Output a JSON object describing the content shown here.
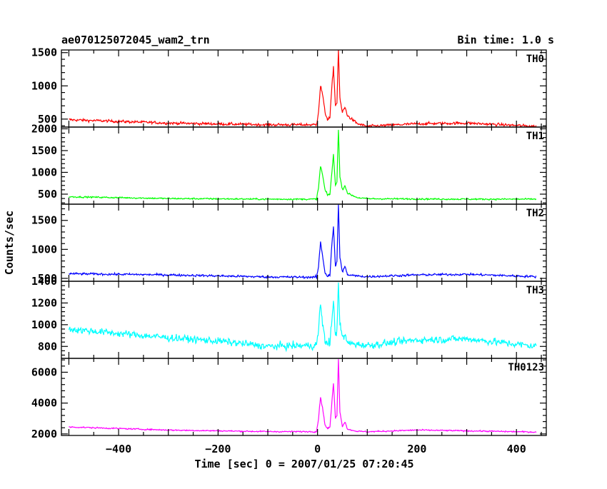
{
  "chart_data": {
    "type": "line",
    "title": "ae070125072045_wam2_trn",
    "bin_time_label": "Bin time: 1.0 s",
    "xlabel": "Time [sec] 0 = 2007/01/25 07:20:45",
    "ylabel": "Counts/sec",
    "xlim": [
      -515,
      460
    ],
    "x_ticks": [
      -400,
      -200,
      0,
      200,
      400
    ],
    "grid": false,
    "legend": "none",
    "panels": [
      {
        "name": "TH0",
        "color": "#ff0000",
        "ylim": [
          380,
          1540
        ],
        "y_ticks": [
          500,
          1000,
          1500
        ],
        "profile": [
          [
            -500,
            490
          ],
          [
            -300,
            440
          ],
          [
            -100,
            415
          ],
          [
            -2,
            415
          ],
          [
            2,
            620
          ],
          [
            6,
            1000
          ],
          [
            10,
            880
          ],
          [
            15,
            600
          ],
          [
            20,
            500
          ],
          [
            25,
            520
          ],
          [
            28,
            900
          ],
          [
            32,
            1280
          ],
          [
            36,
            700
          ],
          [
            39,
            750
          ],
          [
            42,
            1550
          ],
          [
            45,
            800
          ],
          [
            50,
            600
          ],
          [
            55,
            680
          ],
          [
            60,
            550
          ],
          [
            80,
            430
          ],
          [
            100,
            390
          ],
          [
            200,
            430
          ],
          [
            300,
            440
          ],
          [
            440,
            390
          ]
        ],
        "noise": 26
      },
      {
        "name": "TH1",
        "color": "#00ff00",
        "ylim": [
          270,
          2040
        ],
        "y_ticks": [
          500,
          1000,
          1500,
          2000
        ],
        "profile": [
          [
            -500,
            440
          ],
          [
            -300,
            400
          ],
          [
            -100,
            385
          ],
          [
            -2,
            385
          ],
          [
            2,
            650
          ],
          [
            6,
            1150
          ],
          [
            10,
            950
          ],
          [
            15,
            600
          ],
          [
            20,
            480
          ],
          [
            25,
            500
          ],
          [
            28,
            900
          ],
          [
            32,
            1400
          ],
          [
            36,
            700
          ],
          [
            39,
            800
          ],
          [
            42,
            2000
          ],
          [
            45,
            900
          ],
          [
            50,
            600
          ],
          [
            55,
            700
          ],
          [
            60,
            520
          ],
          [
            80,
            420
          ],
          [
            100,
            395
          ],
          [
            200,
            390
          ],
          [
            300,
            385
          ],
          [
            440,
            385
          ]
        ],
        "noise": 22
      },
      {
        "name": "TH2",
        "color": "#0000ff",
        "ylim": [
          450,
          1780
        ],
        "y_ticks": [
          500,
          1000,
          1500
        ],
        "profile": [
          [
            -500,
            580
          ],
          [
            -300,
            560
          ],
          [
            -100,
            525
          ],
          [
            -2,
            520
          ],
          [
            2,
            700
          ],
          [
            6,
            1130
          ],
          [
            10,
            900
          ],
          [
            15,
            600
          ],
          [
            20,
            540
          ],
          [
            25,
            560
          ],
          [
            28,
            1000
          ],
          [
            32,
            1380
          ],
          [
            36,
            700
          ],
          [
            39,
            800
          ],
          [
            42,
            1780
          ],
          [
            45,
            850
          ],
          [
            50,
            620
          ],
          [
            55,
            700
          ],
          [
            60,
            560
          ],
          [
            80,
            540
          ],
          [
            100,
            530
          ],
          [
            200,
            560
          ],
          [
            300,
            570
          ],
          [
            440,
            530
          ]
        ],
        "noise": 24
      },
      {
        "name": "TH3",
        "color": "#00ffff",
        "ylim": [
          690,
          1400
        ],
        "y_ticks": [
          800,
          1000,
          1200,
          1400
        ],
        "profile": [
          [
            -500,
            960
          ],
          [
            -400,
            920
          ],
          [
            -300,
            880
          ],
          [
            -200,
            850
          ],
          [
            -100,
            800
          ],
          [
            -2,
            810
          ],
          [
            2,
            950
          ],
          [
            6,
            1210
          ],
          [
            10,
            1000
          ],
          [
            15,
            860
          ],
          [
            20,
            820
          ],
          [
            25,
            850
          ],
          [
            28,
            1000
          ],
          [
            32,
            1200
          ],
          [
            36,
            900
          ],
          [
            39,
            950
          ],
          [
            42,
            1400
          ],
          [
            45,
            1000
          ],
          [
            50,
            880
          ],
          [
            55,
            900
          ],
          [
            60,
            830
          ],
          [
            100,
            810
          ],
          [
            200,
            860
          ],
          [
            300,
            870
          ],
          [
            440,
            800
          ]
        ],
        "noise": 42
      },
      {
        "name": "TH0123",
        "color": "#ff00ff",
        "ylim": [
          1900,
          6900
        ],
        "y_ticks": [
          2000,
          4000,
          6000
        ],
        "profile": [
          [
            -500,
            2450
          ],
          [
            -300,
            2250
          ],
          [
            -100,
            2150
          ],
          [
            -2,
            2150
          ],
          [
            2,
            3000
          ],
          [
            6,
            4400
          ],
          [
            10,
            3700
          ],
          [
            15,
            2600
          ],
          [
            20,
            2350
          ],
          [
            25,
            2450
          ],
          [
            28,
            3700
          ],
          [
            32,
            5300
          ],
          [
            36,
            3000
          ],
          [
            39,
            3200
          ],
          [
            42,
            6900
          ],
          [
            45,
            3400
          ],
          [
            50,
            2500
          ],
          [
            55,
            2800
          ],
          [
            60,
            2300
          ],
          [
            80,
            2170
          ],
          [
            100,
            2140
          ],
          [
            200,
            2250
          ],
          [
            300,
            2200
          ],
          [
            440,
            2120
          ]
        ],
        "noise": 55
      }
    ]
  }
}
